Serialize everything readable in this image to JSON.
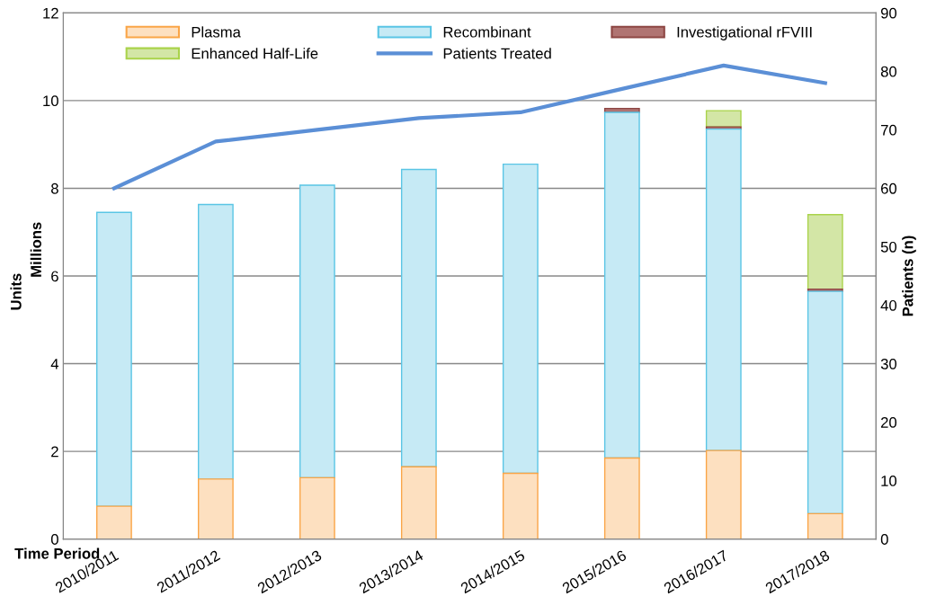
{
  "chart_data": {
    "type": "bar",
    "stacked": true,
    "xlabel": "Time Period",
    "ylabel": "Units",
    "y2label": "Patients (n)",
    "annotations": [
      "Millions"
    ],
    "categories": [
      "2010/2011",
      "2011/2012",
      "2012/2013",
      "2013/2014",
      "2014/2015",
      "2015/2016",
      "2016/2017",
      "2017/2018"
    ],
    "series": [
      {
        "name": "Plasma",
        "color": "#fde0c0",
        "values": [
          0.75,
          1.37,
          1.4,
          1.65,
          1.5,
          1.85,
          2.02,
          0.58
        ]
      },
      {
        "name": "Recombinant",
        "color": "#c6eaf5",
        "values": [
          6.7,
          6.26,
          6.67,
          6.78,
          7.05,
          7.88,
          7.33,
          5.07
        ]
      },
      {
        "name": "Investigational rFVIII",
        "color": "#b07472",
        "values": [
          null,
          null,
          null,
          null,
          null,
          0.09,
          0.05,
          0.05
        ]
      },
      {
        "name": "Enhanced Half-Life",
        "color": "#d3e6a6",
        "values": [
          null,
          null,
          null,
          null,
          null,
          null,
          0.37,
          1.7
        ]
      },
      {
        "name": "Patients Treated",
        "type": "line",
        "axis": "y2",
        "color": "#5b8fd6",
        "values": [
          60,
          68,
          70,
          72,
          73,
          77,
          81,
          78
        ]
      }
    ],
    "ylim": [
      0,
      12
    ],
    "yticks": [
      0,
      2,
      4,
      6,
      8,
      10,
      12
    ],
    "y2lim": [
      0,
      90
    ],
    "y2ticks": [
      0,
      10,
      20,
      30,
      40,
      50,
      60,
      70,
      80,
      90
    ],
    "grid": "y",
    "legend": "top",
    "marker": "none",
    "line_style": "solid"
  }
}
